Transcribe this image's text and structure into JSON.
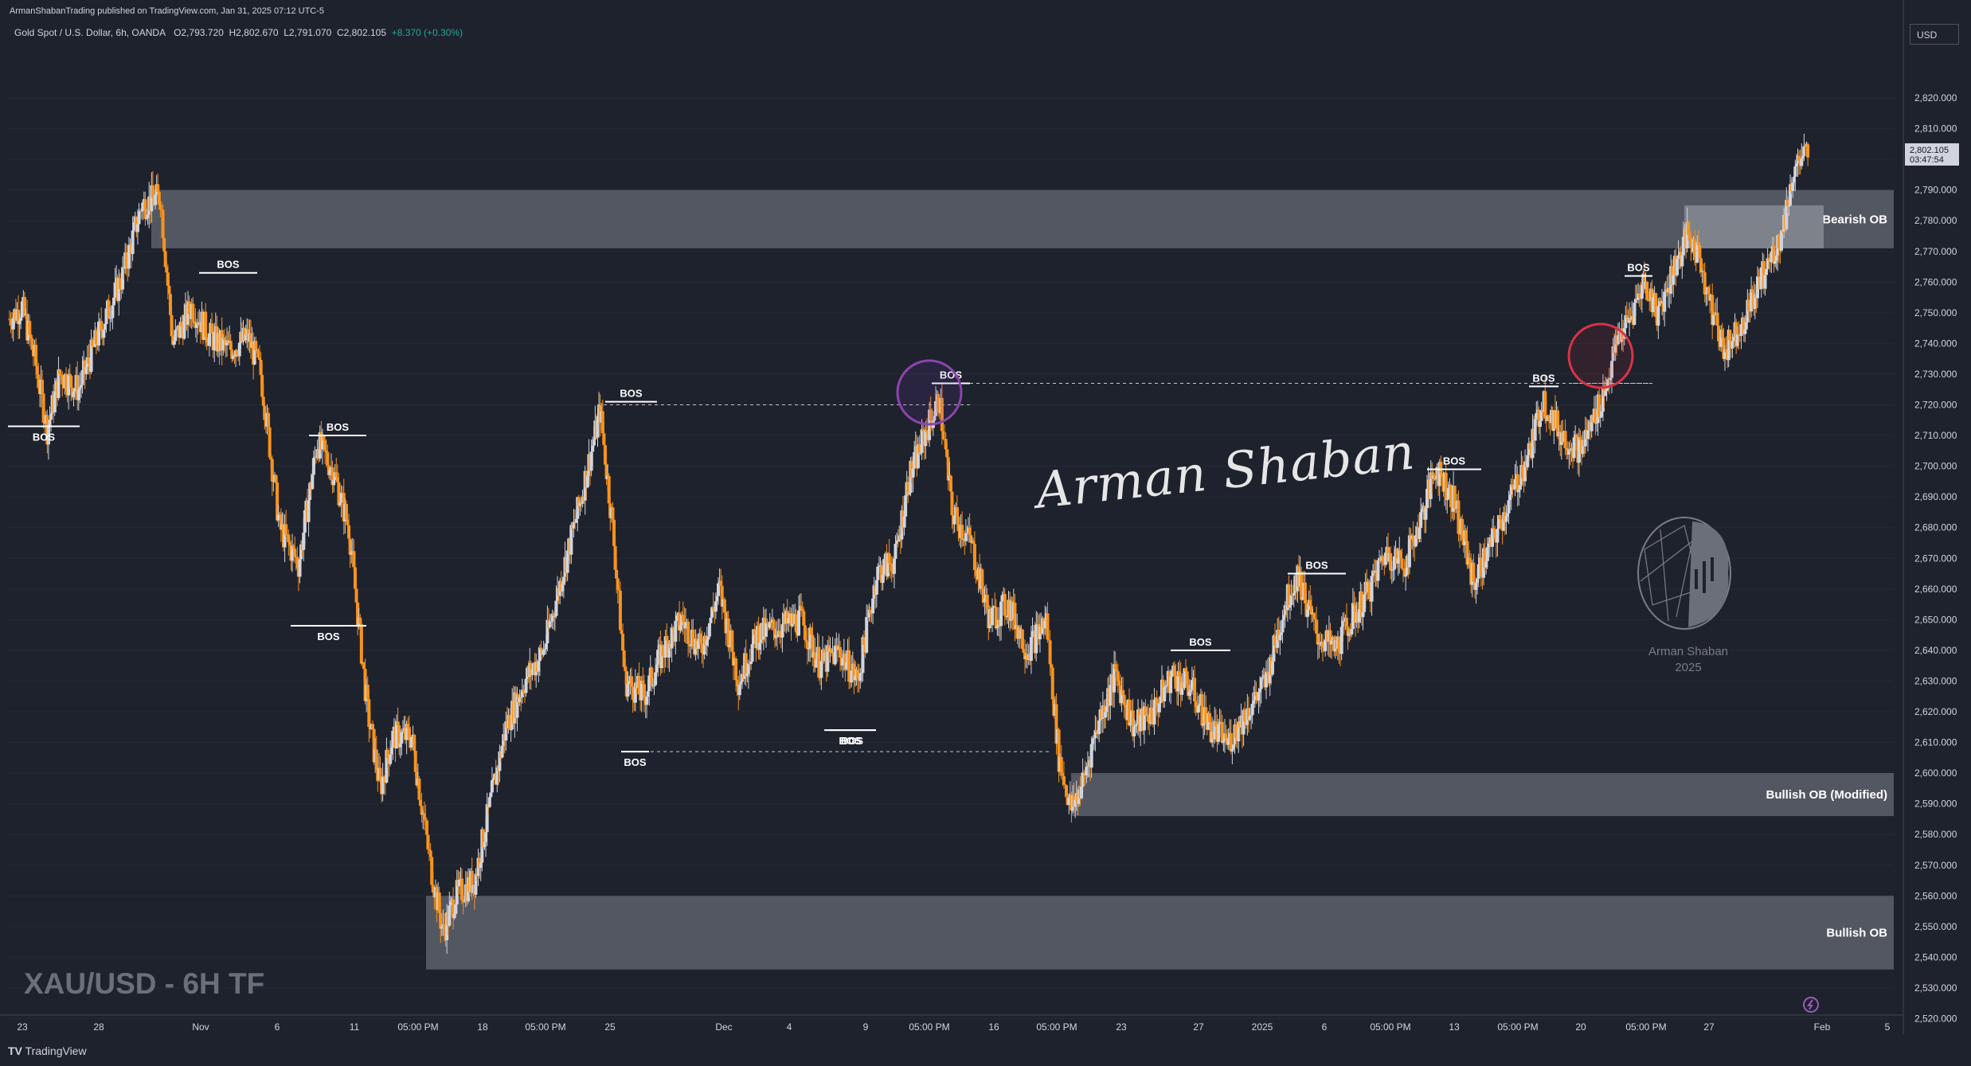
{
  "header": {
    "published": "ArmanShabanTrading published on TradingView.com, Jan 31, 2025 07:12 UTC-5",
    "symbol_line": "Gold Spot / U.S. Dollar, 6h, OANDA",
    "open": "O2,793.720",
    "high": "H2,802.670",
    "low": "L2,791.070",
    "close": "C2,802.105",
    "change": "+8.370 (+0.30%)"
  },
  "currency": "USD",
  "price_axis": {
    "labels": [
      "2,820.000",
      "2,810.000",
      "2,790.000",
      "2,780.000",
      "2,770.000",
      "2,760.000",
      "2,750.000",
      "2,740.000",
      "2,730.000",
      "2,720.000",
      "2,710.000",
      "2,700.000",
      "2,690.000",
      "2,680.000",
      "2,670.000",
      "2,660.000",
      "2,650.000",
      "2,640.000",
      "2,630.000",
      "2,620.000",
      "2,610.000",
      "2,600.000",
      "2,590.000",
      "2,580.000",
      "2,570.000",
      "2,560.000",
      "2,550.000",
      "2,540.000",
      "2,530.000",
      "2,520.000"
    ],
    "current_price": "2,802.105",
    "countdown": "03:47:54"
  },
  "time_axis": {
    "labels": [
      "23",
      "28",
      "Nov",
      "6",
      "11",
      "05:00 PM",
      "18",
      "05:00 PM",
      "25",
      "Dec",
      "4",
      "9",
      "05:00 PM",
      "16",
      "05:00 PM",
      "23",
      "27",
      "2025",
      "6",
      "05:00 PM",
      "13",
      "05:00 PM",
      "20",
      "05:00 PM",
      "27",
      "Feb",
      "5"
    ]
  },
  "watermark": "XAU/USD - 6H TF",
  "signature": "Arman Shaban",
  "logo": {
    "name": "Arman Shaban",
    "year": "2025"
  },
  "footer_brand": "TradingView",
  "colors": {
    "bull": "#d1d4dc",
    "bear": "#f7931e",
    "zone": "#5d606b",
    "bg": "#1e222d"
  },
  "chart_data": {
    "type": "candlestick",
    "title": "",
    "ylim": [
      2515,
      2830
    ],
    "zones": [
      {
        "label": "Bearish OB",
        "low": 2771,
        "high": 2790
      },
      {
        "label": "Bullish OB (Modified)",
        "low": 2586,
        "high": 2600
      },
      {
        "label": "Bullish OB",
        "low": 2536,
        "high": 2560
      }
    ],
    "bos_labels": [
      "BOS",
      "BOS",
      "BOS",
      "BOS",
      "BOS",
      "BOS",
      "BOS",
      "BOS",
      "BOS",
      "BOS",
      "BOS",
      "BOS",
      "BOS",
      "BOS"
    ],
    "close_path": [
      [
        0,
        2748
      ],
      [
        10,
        2752
      ],
      [
        20,
        2735
      ],
      [
        30,
        2712
      ],
      [
        40,
        2730
      ],
      [
        55,
        2725
      ],
      [
        70,
        2742
      ],
      [
        90,
        2762
      ],
      [
        105,
        2785
      ],
      [
        120,
        2788
      ],
      [
        130,
        2740
      ],
      [
        145,
        2752
      ],
      [
        160,
        2742
      ],
      [
        175,
        2738
      ],
      [
        190,
        2742
      ],
      [
        200,
        2730
      ],
      [
        215,
        2680
      ],
      [
        230,
        2668
      ],
      [
        245,
        2708
      ],
      [
        258,
        2698
      ],
      [
        270,
        2680
      ],
      [
        285,
        2620
      ],
      [
        295,
        2595
      ],
      [
        305,
        2612
      ],
      [
        320,
        2612
      ],
      [
        335,
        2570
      ],
      [
        345,
        2548
      ],
      [
        355,
        2560
      ],
      [
        370,
        2565
      ],
      [
        380,
        2585
      ],
      [
        395,
        2615
      ],
      [
        410,
        2630
      ],
      [
        425,
        2640
      ],
      [
        440,
        2665
      ],
      [
        455,
        2690
      ],
      [
        470,
        2718
      ],
      [
        480,
        2680
      ],
      [
        490,
        2630
      ],
      [
        505,
        2625
      ],
      [
        520,
        2640
      ],
      [
        535,
        2650
      ],
      [
        550,
        2640
      ],
      [
        565,
        2660
      ],
      [
        580,
        2630
      ],
      [
        595,
        2645
      ],
      [
        615,
        2648
      ],
      [
        630,
        2650
      ],
      [
        645,
        2635
      ],
      [
        660,
        2640
      ],
      [
        675,
        2630
      ],
      [
        690,
        2665
      ],
      [
        705,
        2670
      ],
      [
        715,
        2695
      ],
      [
        730,
        2712
      ],
      [
        740,
        2722
      ],
      [
        750,
        2685
      ],
      [
        765,
        2675
      ],
      [
        780,
        2650
      ],
      [
        795,
        2655
      ],
      [
        810,
        2640
      ],
      [
        825,
        2650
      ],
      [
        835,
        2605
      ],
      [
        845,
        2588
      ],
      [
        855,
        2598
      ],
      [
        865,
        2615
      ],
      [
        880,
        2632
      ],
      [
        895,
        2615
      ],
      [
        910,
        2620
      ],
      [
        925,
        2632
      ],
      [
        940,
        2628
      ],
      [
        955,
        2615
      ],
      [
        970,
        2610
      ],
      [
        985,
        2620
      ],
      [
        1000,
        2630
      ],
      [
        1015,
        2655
      ],
      [
        1025,
        2665
      ],
      [
        1040,
        2645
      ],
      [
        1055,
        2640
      ],
      [
        1065,
        2648
      ],
      [
        1080,
        2658
      ],
      [
        1095,
        2672
      ],
      [
        1110,
        2668
      ],
      [
        1125,
        2685
      ],
      [
        1135,
        2700
      ],
      [
        1150,
        2688
      ],
      [
        1165,
        2662
      ],
      [
        1180,
        2675
      ],
      [
        1195,
        2690
      ],
      [
        1210,
        2705
      ],
      [
        1220,
        2722
      ],
      [
        1235,
        2710
      ],
      [
        1250,
        2705
      ],
      [
        1260,
        2715
      ],
      [
        1270,
        2725
      ],
      [
        1280,
        2742
      ],
      [
        1290,
        2748
      ],
      [
        1300,
        2760
      ],
      [
        1312,
        2750
      ],
      [
        1325,
        2765
      ],
      [
        1335,
        2775
      ],
      [
        1345,
        2768
      ],
      [
        1355,
        2750
      ],
      [
        1365,
        2738
      ],
      [
        1380,
        2748
      ],
      [
        1395,
        2762
      ],
      [
        1410,
        2775
      ],
      [
        1420,
        2797
      ],
      [
        1432,
        2802
      ]
    ]
  }
}
